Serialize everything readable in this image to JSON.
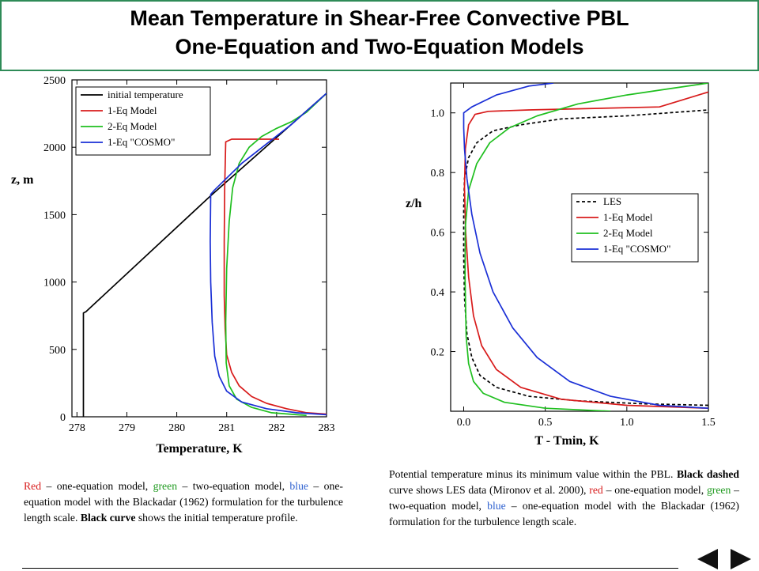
{
  "header": {
    "title_line1": "Mean Temperature in Shear-Free Convective PBL",
    "title_line2": "One-Equation and Two-Equation Models"
  },
  "colors": {
    "title_border": "#2e8b57",
    "initial": "#000000",
    "les": "#000000",
    "one_eq": "#d81b1b",
    "two_eq": "#1fbf1f",
    "cosmo": "#1a2fd6"
  },
  "chart_data": [
    {
      "type": "line",
      "xlabel": "Temperature, K",
      "ylabel": "z, m",
      "xlim": [
        277.9,
        283.0
      ],
      "ylim": [
        0,
        2500
      ],
      "xticks": [
        278,
        279,
        280,
        281,
        282,
        283
      ],
      "yticks": [
        0,
        500,
        1000,
        1500,
        2000,
        2500
      ],
      "legend_position": "top-left",
      "series": [
        {
          "name": "initial temperature",
          "color": "#000000",
          "dash": false,
          "x": [
            278.13,
            278.13,
            278.18,
            280.68,
            283.0
          ],
          "y": [
            0,
            770,
            780,
            1640,
            2400
          ]
        },
        {
          "name": "1-Eq Model",
          "color": "#d81b1b",
          "dash": false,
          "x": [
            283.0,
            282.6,
            282.2,
            281.8,
            281.5,
            281.25,
            281.1,
            281.0,
            280.97,
            280.95,
            280.95,
            280.96,
            280.98,
            281.1,
            282.05
          ],
          "y": [
            20,
            30,
            60,
            100,
            150,
            230,
            330,
            460,
            650,
            900,
            1300,
            1700,
            2040,
            2060,
            2060
          ]
        },
        {
          "name": "2-Eq Model",
          "color": "#1fbf1f",
          "dash": false,
          "x": [
            282.6,
            281.9,
            281.5,
            281.2,
            281.05,
            280.99,
            280.98,
            281.0,
            281.05,
            281.12,
            281.25,
            281.45,
            281.7,
            282.0,
            282.3,
            282.6,
            283.0
          ],
          "y": [
            10,
            30,
            70,
            130,
            230,
            400,
            700,
            1100,
            1450,
            1700,
            1880,
            2000,
            2080,
            2140,
            2190,
            2260,
            2400
          ]
        },
        {
          "name": "1-Eq \"COSMO\"",
          "color": "#1a2fd6",
          "dash": false,
          "x": [
            283.0,
            282.4,
            281.8,
            281.3,
            281.0,
            280.85,
            280.76,
            280.71,
            280.68,
            280.67,
            280.68,
            280.75,
            281.3,
            282.3,
            283.0
          ],
          "y": [
            15,
            30,
            60,
            110,
            190,
            300,
            450,
            700,
            1000,
            1300,
            1650,
            1680,
            1880,
            2170,
            2400
          ]
        }
      ]
    },
    {
      "type": "line",
      "xlabel": "T - Tmin, K",
      "ylabel": "z/h",
      "xlim": [
        -0.08,
        1.5
      ],
      "ylim": [
        0.0,
        1.1
      ],
      "xticks": [
        0.0,
        0.5,
        1.0,
        1.5
      ],
      "xtick_labels": [
        "0.0",
        "0.5",
        "1.0",
        "1.5"
      ],
      "yticks": [
        0.2,
        0.4,
        0.6,
        0.8,
        1.0
      ],
      "ytick_labels": [
        "0.2",
        "0.4",
        "0.6",
        "0.8",
        "1.0"
      ],
      "legend_position": "right",
      "series": [
        {
          "name": "LES",
          "color": "#000000",
          "dash": true,
          "x": [
            1.5,
            1.1,
            0.7,
            0.4,
            0.2,
            0.1,
            0.05,
            0.02,
            0.005,
            0.0,
            0.0,
            0.005,
            0.03,
            0.08,
            0.18,
            0.35,
            0.6,
            1.0,
            1.5
          ],
          "y": [
            0.02,
            0.025,
            0.035,
            0.05,
            0.08,
            0.12,
            0.18,
            0.26,
            0.38,
            0.52,
            0.68,
            0.78,
            0.85,
            0.9,
            0.94,
            0.96,
            0.98,
            0.99,
            1.01
          ]
        },
        {
          "name": "1-Eq Model",
          "color": "#d81b1b",
          "dash": false,
          "x": [
            1.5,
            1.0,
            0.6,
            0.35,
            0.2,
            0.11,
            0.06,
            0.03,
            0.012,
            0.005,
            0.01,
            0.03,
            0.07,
            0.15,
            0.4,
            0.8,
            1.2,
            1.5
          ],
          "y": [
            0.01,
            0.02,
            0.04,
            0.08,
            0.14,
            0.22,
            0.32,
            0.45,
            0.6,
            0.75,
            0.88,
            0.96,
            0.995,
            1.005,
            1.01,
            1.015,
            1.02,
            1.07
          ]
        },
        {
          "name": "2-Eq Model",
          "color": "#1fbf1f",
          "dash": false,
          "x": [
            0.9,
            0.5,
            0.25,
            0.12,
            0.06,
            0.03,
            0.015,
            0.008,
            0.01,
            0.03,
            0.08,
            0.16,
            0.28,
            0.45,
            0.7,
            1.0,
            1.25,
            1.5
          ],
          "y": [
            0.0,
            0.01,
            0.03,
            0.06,
            0.1,
            0.16,
            0.25,
            0.45,
            0.62,
            0.74,
            0.83,
            0.9,
            0.95,
            0.99,
            1.03,
            1.06,
            1.08,
            1.1
          ]
        },
        {
          "name": "1-Eq \"COSMO\"",
          "color": "#1a2fd6",
          "dash": false,
          "x": [
            1.5,
            1.2,
            0.9,
            0.65,
            0.45,
            0.3,
            0.18,
            0.1,
            0.05,
            0.02,
            0.005,
            0.0,
            0.0,
            0.05,
            0.2,
            0.4,
            0.55
          ],
          "y": [
            0.01,
            0.02,
            0.05,
            0.1,
            0.18,
            0.28,
            0.4,
            0.53,
            0.66,
            0.78,
            0.88,
            0.95,
            1.0,
            1.02,
            1.06,
            1.09,
            1.1
          ]
        }
      ]
    }
  ],
  "captions": {
    "left": [
      {
        "text": "Red",
        "color": "red"
      },
      {
        "text": " – one-equation model, "
      },
      {
        "text": "green",
        "color": "green"
      },
      {
        "text": " – two-equation model, "
      },
      {
        "text": "blue",
        "color": "blue"
      },
      {
        "text": " – one-equation model with the Blackadar (1962) formulation for the turbulence length scale. "
      },
      {
        "text": "Black curve",
        "bold": true
      },
      {
        "text": " shows the initial temperature profile."
      }
    ],
    "right": [
      {
        "text": "Potential temperature minus its minimum value within the PBL. "
      },
      {
        "text": "Black dashed",
        "bold": true
      },
      {
        "text": " curve shows LES data (Mironov et al. 2000), "
      },
      {
        "text": "red",
        "color": "red"
      },
      {
        "text": " – one-equation model, "
      },
      {
        "text": "green",
        "color": "green"
      },
      {
        "text": " – two-equation model, "
      },
      {
        "text": "blue",
        "color": "blue"
      },
      {
        "text": " – one-equation model with the Blackadar (1962) formulation for the turbulence length scale."
      }
    ]
  },
  "nav": {
    "prev_icon": "triangle-left-icon",
    "next_icon": "triangle-right-icon"
  }
}
